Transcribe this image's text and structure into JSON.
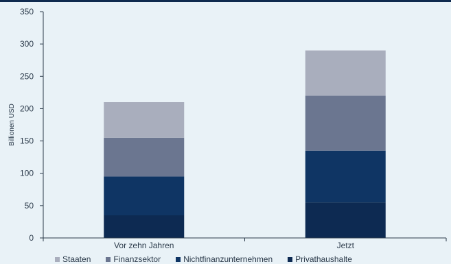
{
  "chart_data": {
    "type": "bar",
    "stacked": true,
    "categories": [
      "Vor zehn Jahren",
      "Jetzt"
    ],
    "series": [
      {
        "name": "Privathaushalte",
        "values": [
          35,
          55
        ],
        "color": "#0d2a52"
      },
      {
        "name": "Nichtfinanzunternehmen",
        "values": [
          60,
          80
        ],
        "color": "#0f3564"
      },
      {
        "name": "Finanzsektor",
        "values": [
          60,
          85
        ],
        "color": "#6b7690"
      },
      {
        "name": "Staaten",
        "values": [
          55,
          70
        ],
        "color": "#a9aebd"
      }
    ],
    "legend_order": [
      "Staaten",
      "Finanzsektor",
      "Nichtfinanzunternehmen",
      "Privathaushalte"
    ],
    "ylabel": "Billionen USD",
    "xlabel": "",
    "ylim": [
      0,
      350
    ],
    "yticks": [
      0,
      50,
      100,
      150,
      200,
      250,
      300,
      350
    ],
    "grid": false,
    "legend_position": "bottom"
  }
}
